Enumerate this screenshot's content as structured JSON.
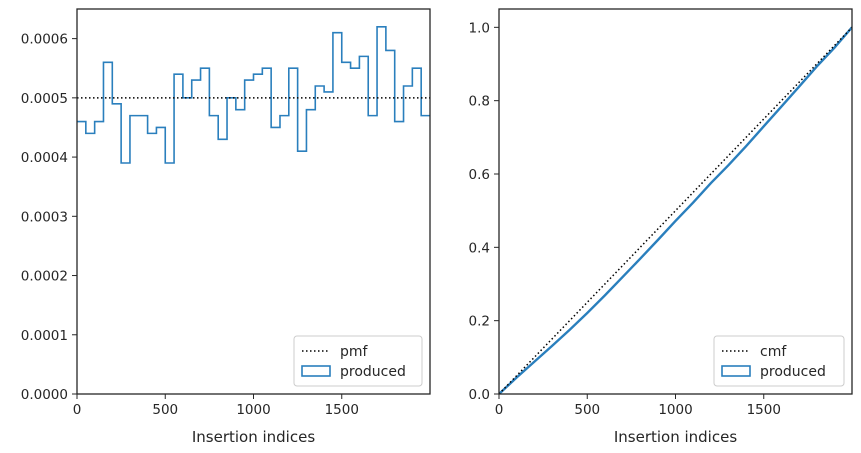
{
  "colors": {
    "produced": "#2a7fbd",
    "reference": "#000000",
    "axis": "#262626"
  },
  "chart_data": [
    {
      "type": "line",
      "drawstyle": "steps",
      "xlabel": "Insertion indices",
      "ylabel": "",
      "xlim": [
        0,
        2000
      ],
      "ylim": [
        0,
        0.00065
      ],
      "xticks": [
        0,
        500,
        1000,
        1500
      ],
      "xtick_labels": [
        "0",
        "500",
        "1000",
        "1500"
      ],
      "yticks": [
        0,
        0.0001,
        0.0002,
        0.0003,
        0.0004,
        0.0005,
        0.0006
      ],
      "ytick_labels": [
        "0.0000",
        "0.0001",
        "0.0002",
        "0.0003",
        "0.0004",
        "0.0005",
        "0.0006"
      ],
      "legend": {
        "location": "lower right",
        "entries": [
          "pmf",
          "produced"
        ]
      },
      "reference": {
        "name": "pmf",
        "style": "dotted",
        "y": 0.0005
      },
      "series": [
        {
          "name": "produced",
          "bin_width": 50,
          "bin_start": 0,
          "values": [
            0.00046,
            0.00044,
            0.00046,
            0.00056,
            0.00049,
            0.00039,
            0.00047,
            0.00047,
            0.00044,
            0.00045,
            0.00039,
            0.00054,
            0.0005,
            0.00053,
            0.00055,
            0.00047,
            0.00043,
            0.0005,
            0.00048,
            0.00053,
            0.00054,
            0.00055,
            0.00045,
            0.00047,
            0.00055,
            0.00041,
            0.00048,
            0.00052,
            0.00051,
            0.00061,
            0.00056,
            0.00055,
            0.00057,
            0.00047,
            0.00062,
            0.00058,
            0.00046,
            0.00052,
            0.00055,
            0.00047
          ]
        }
      ]
    },
    {
      "type": "line",
      "xlabel": "Insertion indices",
      "ylabel": "",
      "xlim": [
        0,
        2000
      ],
      "ylim": [
        0,
        1.05
      ],
      "xticks": [
        0,
        500,
        1000,
        1500
      ],
      "xtick_labels": [
        "0",
        "500",
        "1000",
        "1500"
      ],
      "yticks": [
        0,
        0.2,
        0.4,
        0.6,
        0.8,
        1.0
      ],
      "ytick_labels": [
        "0.0",
        "0.2",
        "0.4",
        "0.6",
        "0.8",
        "1.0"
      ],
      "legend": {
        "location": "lower right",
        "entries": [
          "cmf",
          "produced"
        ]
      },
      "reference": {
        "name": "cmf",
        "style": "dotted",
        "x": [
          0,
          2000
        ],
        "y": [
          0,
          1.0
        ]
      },
      "series": [
        {
          "name": "produced",
          "x": [
            0,
            100,
            200,
            300,
            400,
            500,
            600,
            700,
            800,
            900,
            1000,
            1100,
            1200,
            1300,
            1400,
            1500,
            1600,
            1700,
            1800,
            1900,
            2000
          ],
          "y": [
            0,
            0.045,
            0.088,
            0.131,
            0.175,
            0.221,
            0.269,
            0.319,
            0.369,
            0.42,
            0.472,
            0.522,
            0.575,
            0.624,
            0.676,
            0.73,
            0.784,
            0.838,
            0.893,
            0.944,
            1.0
          ]
        }
      ]
    }
  ]
}
